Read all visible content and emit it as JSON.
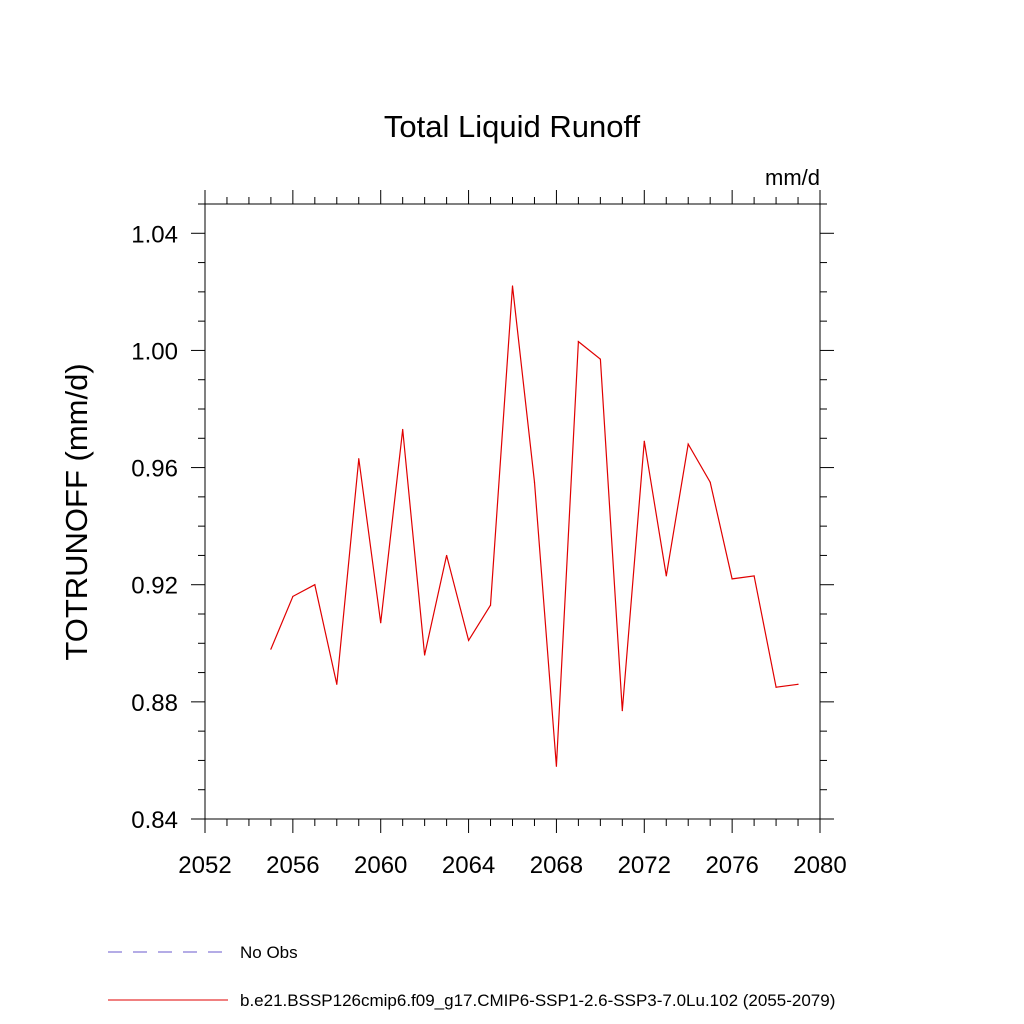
{
  "chart_data": {
    "type": "line",
    "title": "Total Liquid Runoff",
    "units": "mm/d",
    "xlabel": "",
    "ylabel": "TOTRUNOFF  (mm/d)",
    "xlim": [
      2052,
      2080
    ],
    "ylim": [
      0.84,
      1.05
    ],
    "x_ticks": [
      2052,
      2056,
      2060,
      2064,
      2068,
      2072,
      2076,
      2080
    ],
    "x_tick_labels": [
      "2052",
      "2056",
      "2060",
      "2064",
      "2068",
      "2072",
      "2076",
      "2080"
    ],
    "y_ticks": [
      0.84,
      0.88,
      0.92,
      0.96,
      1.0,
      1.04
    ],
    "y_tick_labels": [
      "0.84",
      "0.88",
      "0.92",
      "0.96",
      "1.00",
      "1.04"
    ],
    "grid": false,
    "legend_position": "bottom",
    "series": [
      {
        "name": "b.e21.BSSP126cmip6.f09_g17.CMIP6-SSP1-2.6-SSP3-7.0Lu.102 (2055-2079)",
        "color": "#e00000",
        "style": "solid",
        "x": [
          2055,
          2056,
          2057,
          2058,
          2059,
          2060,
          2061,
          2062,
          2063,
          2064,
          2065,
          2066,
          2067,
          2068,
          2069,
          2070,
          2071,
          2072,
          2073,
          2074,
          2075,
          2076,
          2077,
          2078,
          2079
        ],
        "values": [
          0.898,
          0.916,
          0.92,
          0.886,
          0.963,
          0.907,
          0.973,
          0.896,
          0.93,
          0.901,
          0.913,
          1.022,
          0.955,
          0.858,
          1.003,
          0.997,
          0.877,
          0.969,
          0.923,
          0.968,
          0.955,
          0.922,
          0.923,
          0.885,
          0.886
        ]
      }
    ],
    "legend": [
      {
        "label": "No Obs",
        "color": "#6a5acd",
        "style": "dashed"
      },
      {
        "label": "b.e21.BSSP126cmip6.f09_g17.CMIP6-SSP1-2.6-SSP3-7.0Lu.102 (2055-2079)",
        "color": "#e00000",
        "style": "solid"
      }
    ]
  }
}
